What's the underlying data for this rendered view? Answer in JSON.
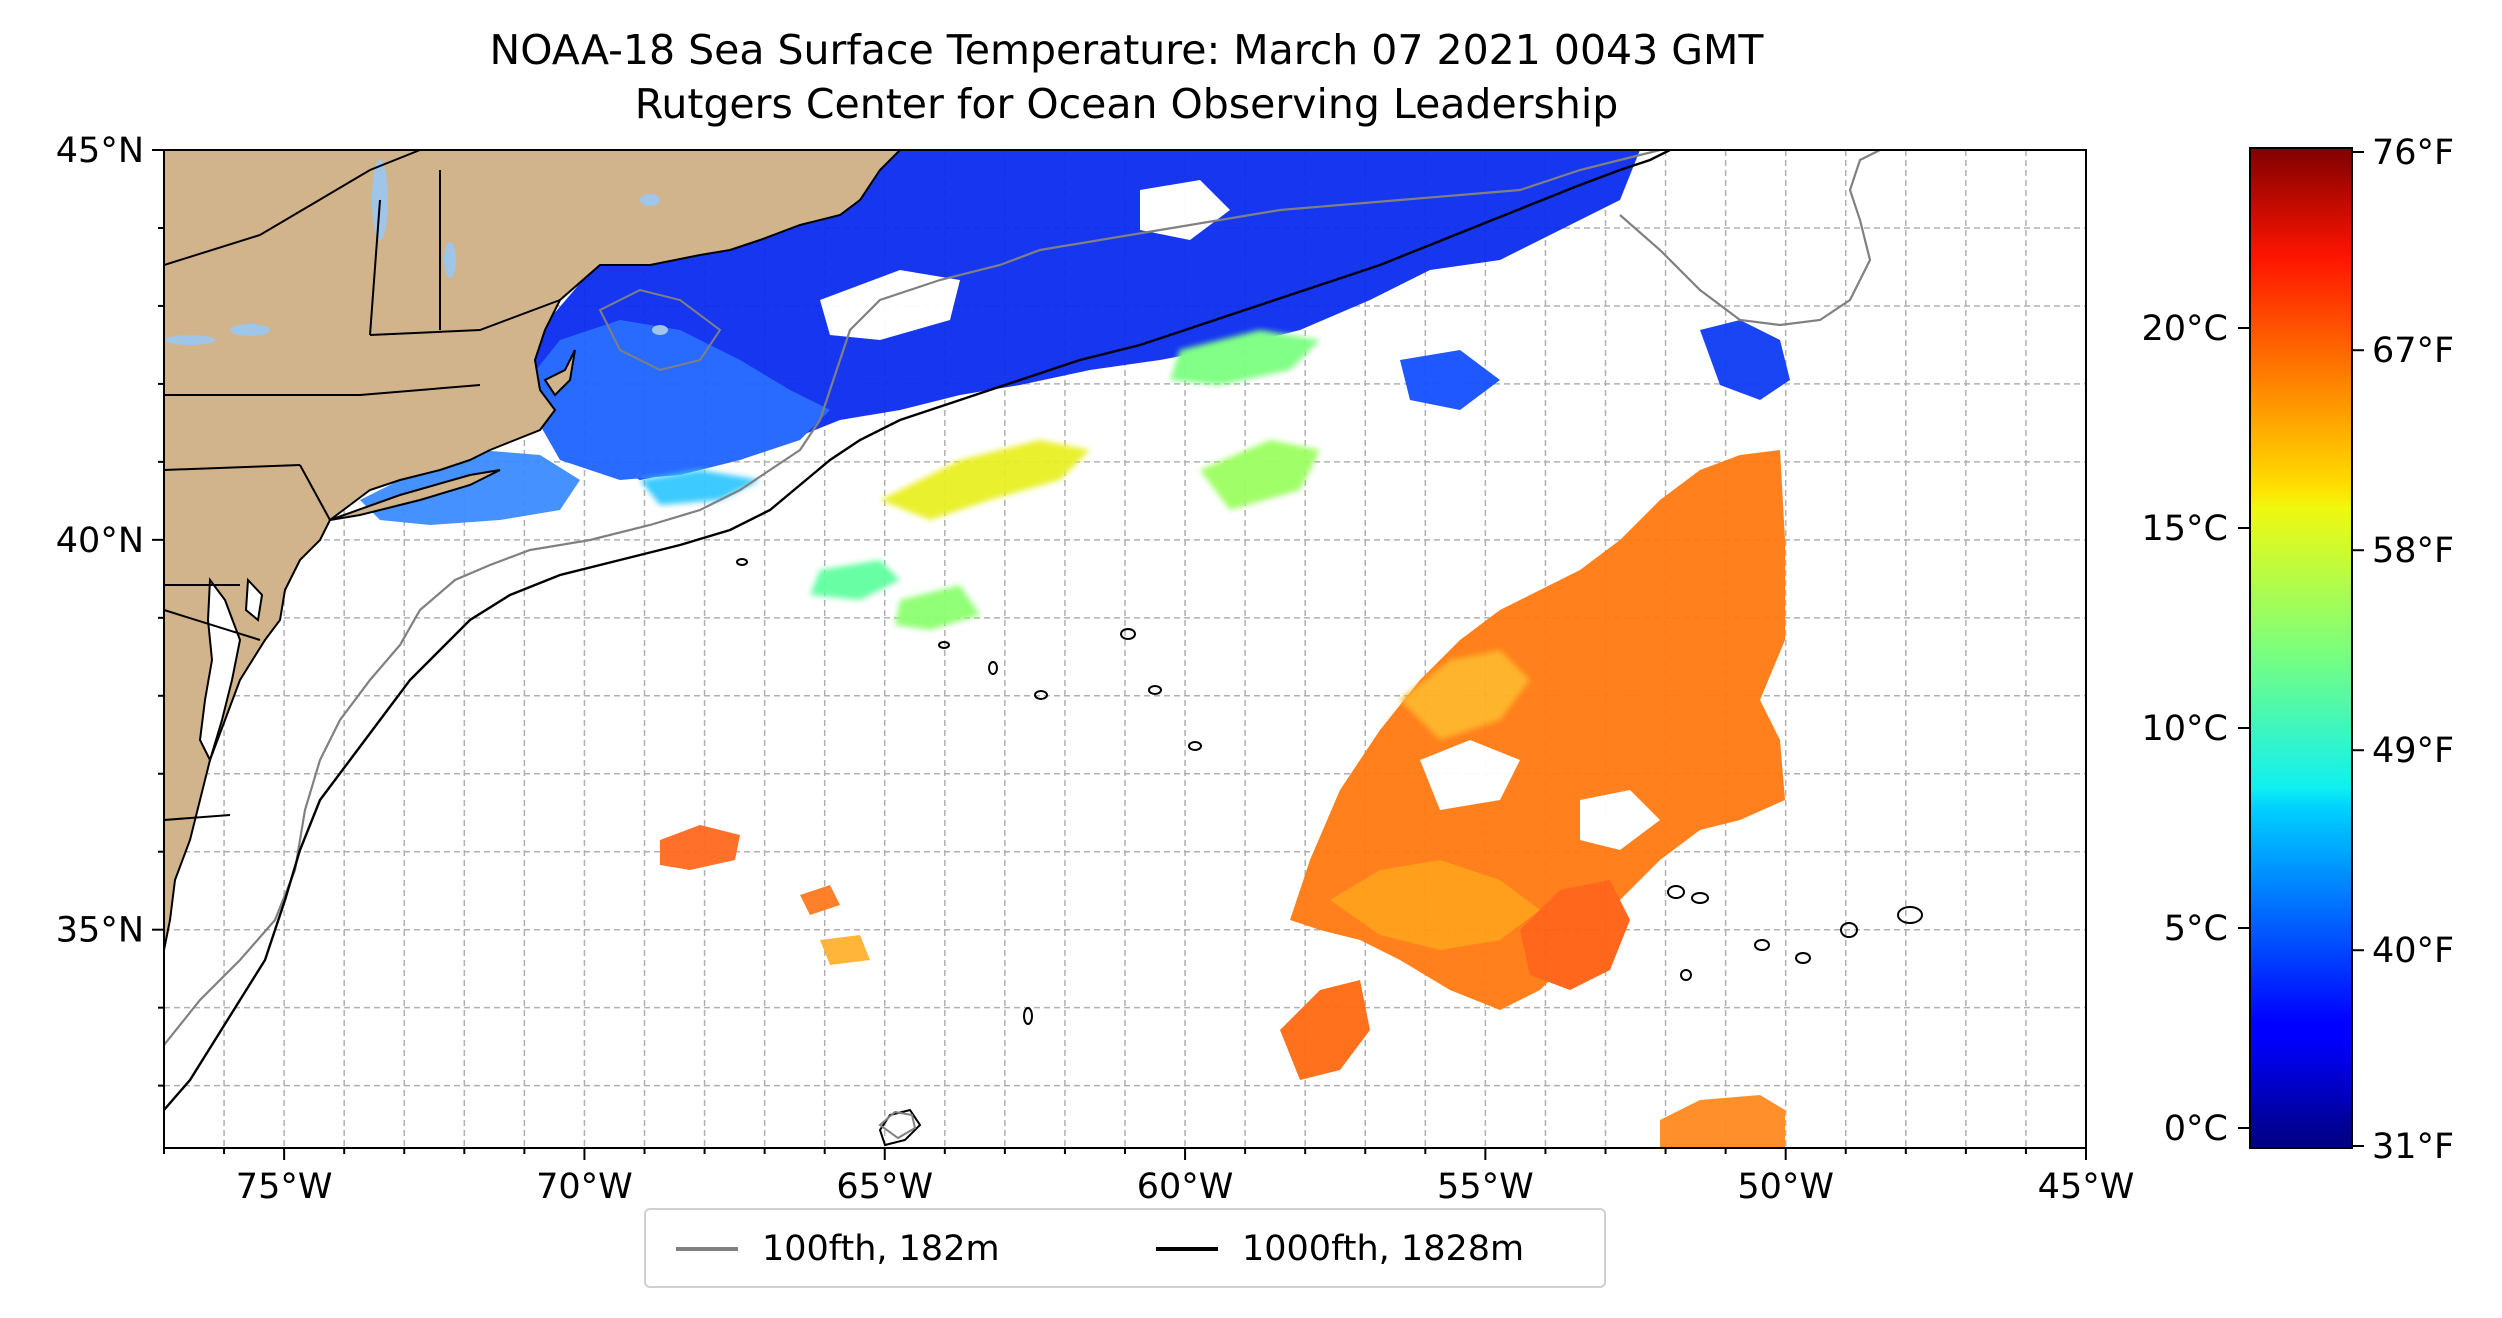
{
  "title": "NOAA-18 Sea Surface Temperature: March 07 2021 0043 GMT",
  "subtitle": "Rutgers Center for Ocean Observing Leadership",
  "map": {
    "lon_range": [
      -77,
      -45
    ],
    "lat_range": [
      32.2,
      45
    ],
    "land_color": "#d2b48c",
    "ocean_color": "#ffffff",
    "lakes_color": "#9fc5e8",
    "grid": true,
    "lat_labels": [
      "35°N",
      "40°N",
      "45°N"
    ],
    "lat_values": [
      35,
      40,
      45
    ],
    "lon_labels": [
      "75°W",
      "70°W",
      "65°W",
      "60°W",
      "55°W",
      "50°W",
      "45°W"
    ],
    "lon_values": [
      -75,
      -70,
      -65,
      -60,
      -55,
      -50,
      -45
    ]
  },
  "colorbar": {
    "colormap": "jet",
    "celsius_range": [
      -0.5,
      24.5
    ],
    "celsius_labels": [
      "0°C",
      "5°C",
      "10°C",
      "15°C",
      "20°C"
    ],
    "celsius_values": [
      0,
      5,
      10,
      15,
      20
    ],
    "fahrenheit_labels": [
      "31°F",
      "40°F",
      "49°F",
      "58°F",
      "67°F",
      "76°F"
    ],
    "fahrenheit_values": [
      31,
      40,
      49,
      58,
      67,
      76
    ]
  },
  "legend": {
    "items": [
      {
        "label": "100fth, 182m",
        "color": "#808080"
      },
      {
        "label": "1000fth, 1828m",
        "color": "#000000"
      }
    ]
  }
}
